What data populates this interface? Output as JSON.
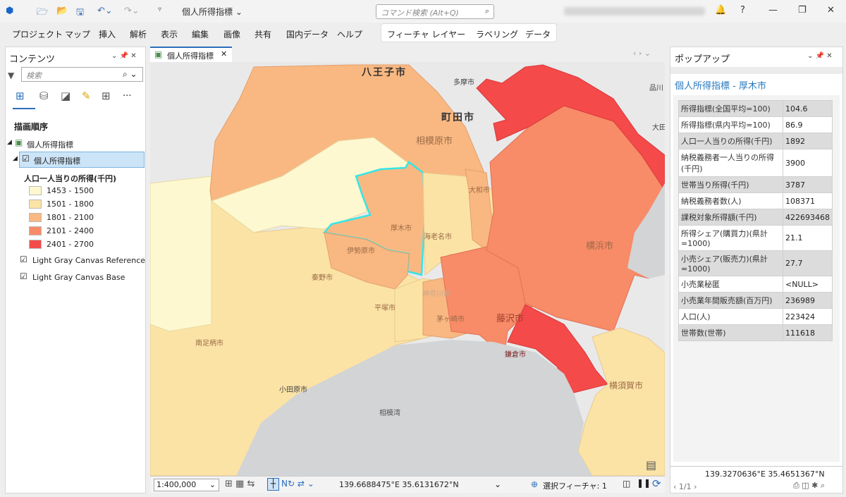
{
  "titlebar": {
    "doc_title": "個人所得指標 ⌄",
    "command_search_placeholder": "コマンド検索 (Alt+Q)",
    "minimize": "—",
    "help": "?",
    "restore": "❐",
    "close": "✕"
  },
  "menu": [
    "プロジェクト",
    "マップ",
    "挿入",
    "解析",
    "表示",
    "編集",
    "画像",
    "共有",
    "国内データ",
    "ヘルプ"
  ],
  "context_tabs": [
    "フィーチャ レイヤー",
    "ラベリング",
    "データ"
  ],
  "contents": {
    "title": "コンテンツ",
    "search_placeholder": "検索",
    "drawing_order": "描画順序",
    "map_name": "個人所得指標",
    "layer_name": "個人所得指標",
    "field": "人口一人当りの所得(千円)",
    "legend": [
      {
        "label": "1453 - 1500",
        "color": "#fdf8d0"
      },
      {
        "label": "1501 - 1800",
        "color": "#fbe3a6"
      },
      {
        "label": "1801 - 2100",
        "color": "#f9b882"
      },
      {
        "label": "2101 - 2400",
        "color": "#f88b68"
      },
      {
        "label": "2401 - 2700",
        "color": "#f44a4a"
      }
    ],
    "basemaps": [
      "Light Gray Canvas Reference",
      "Light Gray Canvas Base"
    ]
  },
  "map": {
    "tab": "個人所得指標",
    "labels": {
      "hachioji": "八王子市",
      "tama": "多摩市",
      "machida": "町田市",
      "shinagawa": "品川",
      "ota": "大田",
      "sagamihara": "相模原市",
      "yamato": "大和市",
      "atsugi": "厚木市",
      "ebina": "海老名市",
      "isehara": "伊勢原市",
      "yokohama": "横浜市",
      "hadano": "秦野市",
      "hiratsuka": "平塚市",
      "chigasaki": "茅ヶ崎市",
      "fujisawa": "藤沢市",
      "kamakura": "鎌倉市",
      "yokosuka": "横須賀市",
      "minamiashigara": "南足柄市",
      "odawara": "小田原市",
      "sagamiwan": "相模湾",
      "kanagawa": "神奈川県"
    }
  },
  "status": {
    "scale": "1:400,000",
    "coords": "139.6688475°E 35.6131672°N",
    "selected": "選択フィーチャ: 1"
  },
  "popup": {
    "title": "ポップアップ",
    "feature": "個人所得指標 - 厚木市",
    "rows": [
      [
        "所得指標(全国平均=100)",
        "104.6"
      ],
      [
        "所得指標(県内平均=100)",
        "86.9"
      ],
      [
        "人口一人当りの所得(千円)",
        "1892"
      ],
      [
        "納税義務者一人当りの所得(千円)",
        "3900"
      ],
      [
        "世帯当り所得(千円)",
        "3787"
      ],
      [
        "納税義務者数(人)",
        "108371"
      ],
      [
        "課税対象所得額(千円)",
        "422693468"
      ],
      [
        "所得シェア(購買力)(県計=1000)",
        "21.1"
      ],
      [
        "小売シェア(販売力)(県計=1000)",
        "27.7"
      ],
      [
        "小売業秘匿",
        "<NULL>"
      ],
      [
        "小売業年間販売額(百万円)",
        "236989"
      ],
      [
        "人口(人)",
        "223424"
      ],
      [
        "世帯数(世帯)",
        "111618"
      ]
    ],
    "coords": "139.3270636°E 35.4651367°N",
    "page": "1/1"
  }
}
